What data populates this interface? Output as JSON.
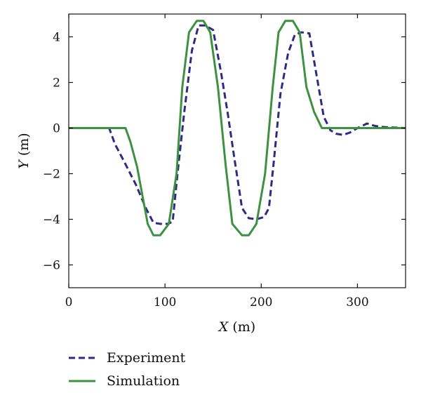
{
  "chart_data": {
    "type": "line",
    "title": "",
    "xlabel": {
      "var": "X",
      "unit": " (m)"
    },
    "ylabel": {
      "var": "Y",
      "unit": " (m)"
    },
    "xlim": [
      0,
      350
    ],
    "ylim": [
      -7,
      5
    ],
    "xticks": [
      0,
      100,
      200,
      300
    ],
    "xtick_labels": [
      "0",
      "100",
      "200",
      "300"
    ],
    "yticks": [
      4,
      2,
      0,
      -2,
      -4,
      -6
    ],
    "ytick_labels": [
      "4",
      "2",
      "0",
      "−2",
      "−4",
      "−6"
    ],
    "grid": false,
    "legend_position": "below",
    "series": [
      {
        "name": "Experiment",
        "color": "#2e2a85",
        "style": "dashed",
        "x": [
          0,
          42,
          48,
          58,
          70,
          80,
          88,
          95,
          103,
          108,
          113,
          120,
          128,
          135,
          142,
          150,
          158,
          165,
          172,
          180,
          187,
          195,
          203,
          208,
          213,
          220,
          228,
          235,
          242,
          250,
          258,
          265,
          272,
          278,
          285,
          292,
          300,
          305,
          310,
          318,
          325,
          350
        ],
        "y": [
          0,
          0,
          -0.7,
          -1.5,
          -2.5,
          -3.5,
          -4.15,
          -4.2,
          -4.2,
          -4.1,
          -2.0,
          0.7,
          3.4,
          4.5,
          4.5,
          4.3,
          2.5,
          0.7,
          -1.3,
          -3.5,
          -3.95,
          -4.0,
          -3.9,
          -3.5,
          -1.5,
          1.5,
          3.3,
          4.1,
          4.2,
          4.15,
          2.2,
          0.5,
          -0.1,
          -0.25,
          -0.3,
          -0.2,
          0.0,
          0.1,
          0.2,
          0.1,
          0.05,
          0
        ]
      },
      {
        "name": "Simulation",
        "color": "#3d9140",
        "style": "solid",
        "x": [
          0,
          59,
          64,
          71,
          82,
          88,
          95,
          104,
          112,
          118,
          125,
          133,
          140,
          147,
          155,
          163,
          170,
          180,
          187,
          195,
          204,
          212,
          218,
          225,
          233,
          240,
          247,
          255,
          263,
          269,
          350
        ],
        "y": [
          0,
          0,
          -0.6,
          -1.7,
          -4.2,
          -4.7,
          -4.7,
          -4.2,
          -2.0,
          1.8,
          4.2,
          4.7,
          4.7,
          4.2,
          1.8,
          -1.6,
          -4.2,
          -4.7,
          -4.7,
          -4.2,
          -2.0,
          1.8,
          4.2,
          4.7,
          4.7,
          4.2,
          1.8,
          0.7,
          0,
          0,
          0
        ]
      }
    ]
  }
}
